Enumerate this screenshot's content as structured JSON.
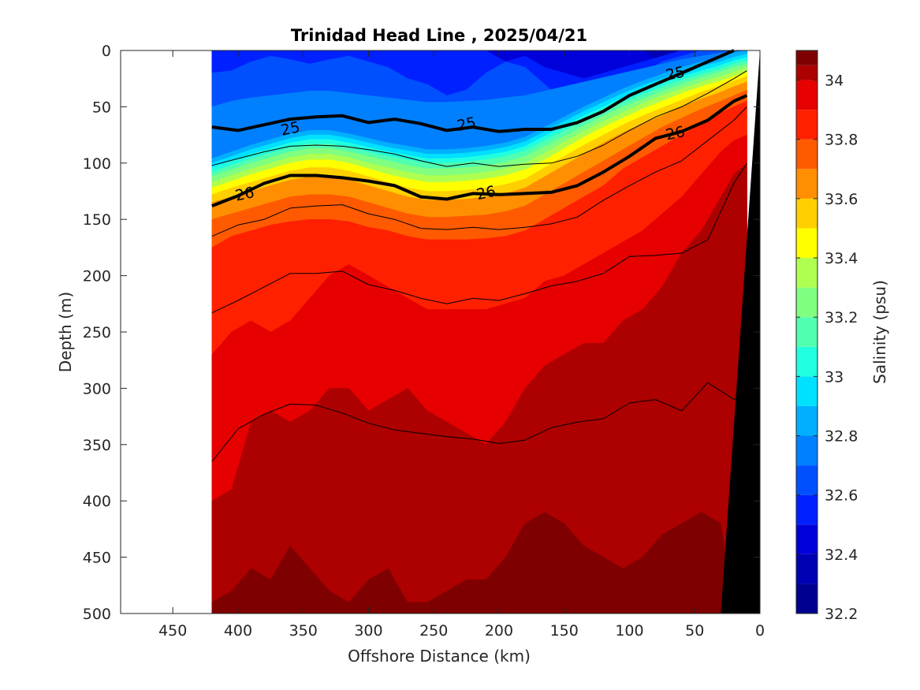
{
  "chart_data": {
    "type": "contour",
    "title": "Trinidad Head Line , 2025/04/21",
    "xlabel": "Offshore Distance (km)",
    "ylabel": "Depth (m)",
    "xlim": [
      490,
      0
    ],
    "ylim": [
      0,
      500
    ],
    "x_reversed": true,
    "y_reversed": true,
    "xticks": [
      450,
      400,
      350,
      300,
      250,
      200,
      150,
      100,
      50,
      0
    ],
    "yticks": [
      0,
      50,
      100,
      150,
      200,
      250,
      300,
      350,
      400,
      450,
      500
    ],
    "data_extent_km": [
      420,
      10
    ],
    "colorbar": {
      "label": "Salinity (psu)",
      "min": 32.2,
      "max": 34.1,
      "ticks": [
        32.2,
        32.4,
        32.6,
        32.8,
        33.0,
        33.2,
        33.4,
        33.6,
        33.8,
        34.0
      ],
      "tick_labels": [
        "32.2",
        "32.4",
        "32.6",
        "32.8",
        "33",
        "33.2",
        "33.4",
        "33.6",
        "33.8",
        "34"
      ],
      "levels": [
        {
          "from": 32.2,
          "to": 32.3,
          "color": "#00008f"
        },
        {
          "from": 32.3,
          "to": 32.4,
          "color": "#0000b4"
        },
        {
          "from": 32.4,
          "to": 32.5,
          "color": "#0000db"
        },
        {
          "from": 32.5,
          "to": 32.6,
          "color": "#0020ff"
        },
        {
          "from": 32.6,
          "to": 32.7,
          "color": "#0050ff"
        },
        {
          "from": 32.7,
          "to": 32.8,
          "color": "#0080ff"
        },
        {
          "from": 32.8,
          "to": 32.9,
          "color": "#00b0ff"
        },
        {
          "from": 32.9,
          "to": 33.0,
          "color": "#00e0ff"
        },
        {
          "from": 33.0,
          "to": 33.1,
          "color": "#20ffdf"
        },
        {
          "from": 33.1,
          "to": 33.2,
          "color": "#50ffaf"
        },
        {
          "from": 33.2,
          "to": 33.3,
          "color": "#80ff80"
        },
        {
          "from": 33.3,
          "to": 33.4,
          "color": "#afff50"
        },
        {
          "from": 33.4,
          "to": 33.5,
          "color": "#ffff00"
        },
        {
          "from": 33.5,
          "to": 33.6,
          "color": "#ffcf00"
        },
        {
          "from": 33.6,
          "to": 33.7,
          "color": "#ff8f00"
        },
        {
          "from": 33.7,
          "to": 33.8,
          "color": "#ff5a00"
        },
        {
          "from": 33.8,
          "to": 33.9,
          "color": "#ff2000"
        },
        {
          "from": 33.9,
          "to": 34.0,
          "color": "#e60000"
        },
        {
          "from": 34.0,
          "to": 34.05,
          "color": "#ad0000"
        },
        {
          "from": 34.05,
          "to": 34.1,
          "color": "#7f0000"
        }
      ]
    },
    "salinity_layers": [
      {
        "salinity": 34.08,
        "color": "#7f0000",
        "top_depth": [
          490,
          480,
          460,
          470,
          440,
          460,
          480,
          490,
          470,
          460,
          490,
          490,
          480,
          470,
          470,
          450,
          420,
          410,
          420,
          440,
          450,
          460,
          450,
          430,
          420,
          410,
          420,
          500,
          500
        ]
      },
      {
        "salinity": 34.02,
        "color": "#ad0000",
        "top_depth": [
          400,
          390,
          330,
          320,
          330,
          320,
          300,
          300,
          320,
          310,
          300,
          320,
          330,
          340,
          350,
          330,
          300,
          280,
          270,
          260,
          260,
          240,
          230,
          210,
          180,
          160,
          130,
          110,
          100
        ]
      },
      {
        "salinity": 33.95,
        "color": "#e60000",
        "top_depth": [
          270,
          250,
          240,
          250,
          240,
          220,
          200,
          190,
          200,
          210,
          220,
          230,
          230,
          230,
          230,
          225,
          220,
          205,
          200,
          190,
          180,
          170,
          160,
          145,
          130,
          110,
          90,
          80,
          75
        ]
      },
      {
        "salinity": 33.85,
        "color": "#ff2000",
        "top_depth": [
          175,
          165,
          160,
          155,
          152,
          150,
          150,
          152,
          157,
          160,
          165,
          168,
          168,
          168,
          167,
          165,
          160,
          150,
          140,
          130,
          120,
          105,
          95,
          85,
          75,
          65,
          55,
          50,
          45
        ]
      },
      {
        "salinity": 33.75,
        "color": "#ff5a00",
        "top_depth": [
          150,
          145,
          140,
          135,
          130,
          128,
          128,
          130,
          135,
          140,
          145,
          148,
          148,
          147,
          146,
          143,
          138,
          128,
          118,
          108,
          98,
          88,
          78,
          68,
          60,
          52,
          45,
          40,
          35
        ]
      },
      {
        "salinity": 33.65,
        "color": "#ff8f00",
        "top_depth": [
          135,
          130,
          125,
          120,
          115,
          112,
          113,
          115,
          120,
          125,
          130,
          133,
          133,
          132,
          130,
          127,
          122,
          112,
          102,
          92,
          82,
          73,
          65,
          58,
          50,
          43,
          37,
          32,
          28
        ]
      },
      {
        "salinity": 33.55,
        "color": "#ffcf00",
        "top_depth": [
          128,
          122,
          117,
          112,
          107,
          104,
          104,
          107,
          112,
          117,
          122,
          125,
          125,
          124,
          122,
          119,
          114,
          104,
          94,
          84,
          75,
          66,
          58,
          51,
          44,
          37,
          31,
          27,
          23
        ]
      },
      {
        "salinity": 33.45,
        "color": "#ffff00",
        "top_depth": [
          122,
          116,
          110,
          105,
          100,
          97,
          97,
          100,
          105,
          110,
          114,
          117,
          117,
          116,
          114,
          111,
          106,
          97,
          87,
          77,
          68,
          60,
          52,
          45,
          38,
          32,
          27,
          23,
          19
        ]
      },
      {
        "salinity": 33.35,
        "color": "#afff50",
        "top_depth": [
          117,
          111,
          105,
          100,
          95,
          92,
          92,
          95,
          100,
          104,
          108,
          111,
          111,
          110,
          108,
          105,
          100,
          91,
          81,
          72,
          63,
          55,
          47,
          40,
          34,
          28,
          23,
          19,
          15
        ]
      },
      {
        "salinity": 33.25,
        "color": "#80ff80",
        "top_depth": [
          112,
          106,
          100,
          95,
          90,
          87,
          87,
          90,
          94,
          98,
          102,
          105,
          105,
          104,
          102,
          99,
          94,
          85,
          76,
          67,
          58,
          50,
          43,
          36,
          30,
          24,
          19,
          15,
          12
        ]
      },
      {
        "salinity": 33.15,
        "color": "#50ffaf",
        "top_depth": [
          108,
          102,
          96,
          91,
          86,
          83,
          83,
          86,
          90,
          94,
          97,
          100,
          100,
          99,
          97,
          94,
          89,
          80,
          71,
          62,
          54,
          46,
          39,
          32,
          26,
          21,
          16,
          12,
          9
        ]
      },
      {
        "salinity": 33.05,
        "color": "#20ffdf",
        "top_depth": [
          104,
          98,
          92,
          87,
          82,
          79,
          79,
          82,
          86,
          90,
          93,
          96,
          96,
          95,
          93,
          90,
          85,
          76,
          67,
          58,
          50,
          42,
          35,
          29,
          23,
          18,
          13,
          9,
          6
        ]
      },
      {
        "salinity": 32.95,
        "color": "#00e0ff",
        "top_depth": [
          100,
          94,
          88,
          83,
          78,
          75,
          75,
          78,
          82,
          86,
          89,
          92,
          92,
          91,
          89,
          86,
          81,
          72,
          63,
          54,
          46,
          38,
          31,
          25,
          19,
          14,
          10,
          6,
          3
        ]
      },
      {
        "salinity": 32.85,
        "color": "#00b0ff",
        "top_depth": [
          96,
          90,
          84,
          79,
          74,
          71,
          71,
          74,
          78,
          82,
          85,
          88,
          88,
          87,
          85,
          82,
          77,
          68,
          59,
          50,
          42,
          34,
          27,
          21,
          15,
          10,
          6,
          2,
          0
        ]
      },
      {
        "salinity": 32.75,
        "color": "#0080ff",
        "top_depth": [
          50,
          45,
          42,
          40,
          38,
          36,
          36,
          38,
          40,
          42,
          44,
          46,
          46,
          45,
          44,
          42,
          40,
          36,
          32,
          28,
          24,
          20,
          16,
          12,
          8,
          5,
          2,
          0,
          0
        ]
      },
      {
        "salinity": 32.65,
        "color": "#0050ff",
        "top_depth": [
          20,
          18,
          10,
          5,
          8,
          12,
          8,
          5,
          10,
          15,
          25,
          30,
          40,
          35,
          20,
          10,
          15,
          30,
          45,
          48,
          40,
          30,
          20,
          10,
          5,
          0,
          0,
          0,
          0
        ]
      },
      {
        "salinity": 32.55,
        "color": "#0020ff",
        "top_depth": [
          0,
          0,
          0,
          0,
          0,
          0,
          0,
          0,
          0,
          0,
          0,
          0,
          0,
          0,
          0,
          10,
          5,
          15,
          20,
          25,
          20,
          15,
          10,
          5,
          0,
          0,
          0,
          0,
          0
        ]
      },
      {
        "salinity": 32.45,
        "color": "#0000db",
        "top_depth": [
          0,
          0,
          0,
          0,
          0,
          0,
          0,
          0,
          0,
          0,
          0,
          0,
          0,
          0,
          0,
          0,
          0,
          0,
          0,
          0,
          0,
          0,
          0,
          12,
          8,
          10,
          0,
          0,
          0
        ]
      },
      {
        "salinity": 32.35,
        "color": "#0000b4",
        "top_depth": [
          0,
          0,
          0,
          0,
          0,
          0,
          0,
          0,
          0,
          0,
          0,
          0,
          0,
          0,
          0,
          0,
          0,
          0,
          0,
          0,
          0,
          0,
          0,
          0,
          0,
          0,
          0,
          0,
          0
        ]
      }
    ],
    "layer_x_km": [
      420,
      405,
      390,
      375,
      360,
      345,
      330,
      315,
      300,
      285,
      270,
      255,
      240,
      225,
      210,
      195,
      180,
      165,
      150,
      135,
      120,
      105,
      90,
      75,
      60,
      45,
      30,
      20,
      10
    ],
    "density_contours": [
      {
        "sigma": "25",
        "bold": true,
        "x": [
          420,
          400,
          380,
          360,
          340,
          320,
          300,
          280,
          260,
          240,
          220,
          200,
          180,
          160,
          140,
          120,
          100,
          80,
          60,
          40,
          20
        ],
        "depth": [
          68,
          71,
          66,
          61,
          59,
          58,
          64,
          61,
          65,
          71,
          68,
          72,
          70,
          70,
          64,
          54,
          40,
          30,
          20,
          10,
          0
        ]
      },
      {
        "sigma": "26",
        "bold": true,
        "x": [
          420,
          400,
          380,
          360,
          340,
          320,
          300,
          280,
          260,
          240,
          220,
          200,
          180,
          160,
          140,
          120,
          100,
          80,
          60,
          40,
          20,
          10
        ],
        "depth": [
          138,
          129,
          118,
          111,
          111,
          113,
          116,
          120,
          130,
          132,
          127,
          128,
          127,
          126,
          120,
          108,
          94,
          78,
          72,
          62,
          45,
          40
        ]
      },
      {
        "sigma": "25.5",
        "bold": false,
        "x": [
          420,
          400,
          380,
          360,
          340,
          320,
          300,
          280,
          260,
          240,
          220,
          200,
          180,
          160,
          140,
          120,
          100,
          80,
          60,
          40,
          20,
          10
        ],
        "depth": [
          102,
          96,
          90,
          85,
          84,
          85,
          88,
          92,
          98,
          103,
          100,
          103,
          101,
          100,
          94,
          84,
          71,
          59,
          50,
          38,
          25,
          18
        ]
      },
      {
        "sigma": "26.3",
        "bold": false,
        "x": [
          420,
          400,
          380,
          360,
          340,
          320,
          300,
          280,
          260,
          240,
          220,
          200,
          180,
          160,
          140,
          120,
          100,
          80,
          60,
          40,
          20,
          10
        ],
        "depth": [
          165,
          155,
          150,
          140,
          138,
          137,
          145,
          150,
          158,
          159,
          157,
          159,
          157,
          154,
          148,
          133,
          120,
          108,
          98,
          80,
          62,
          50
        ]
      },
      {
        "sigma": "26.5",
        "bold": false,
        "x": [
          420,
          400,
          380,
          360,
          340,
          320,
          300,
          280,
          260,
          240,
          220,
          200,
          180,
          160,
          140,
          120,
          100,
          80,
          60,
          40,
          20,
          10
        ],
        "depth": [
          233,
          222,
          210,
          198,
          198,
          196,
          208,
          213,
          220,
          225,
          220,
          222,
          216,
          209,
          205,
          198,
          183,
          182,
          180,
          168,
          118,
          100
        ]
      },
      {
        "sigma": "26.7",
        "bold": false,
        "x": [
          420,
          400,
          380,
          360,
          340,
          320,
          300,
          280,
          260,
          240,
          220,
          200,
          180,
          160,
          140,
          120,
          100,
          80,
          60,
          40,
          20,
          10
        ],
        "depth": [
          365,
          336,
          323,
          314,
          315,
          322,
          331,
          337,
          340,
          343,
          345,
          349,
          346,
          335,
          330,
          327,
          313,
          310,
          320,
          295,
          310,
          300
        ]
      }
    ],
    "contour_labels": [
      {
        "text": "25",
        "x": 360,
        "depth": 69
      },
      {
        "text": "25",
        "x": 225,
        "depth": 65
      },
      {
        "text": "25",
        "x": 65,
        "depth": 20
      },
      {
        "text": "26",
        "x": 395,
        "depth": 127
      },
      {
        "text": "26",
        "x": 210,
        "depth": 126
      },
      {
        "text": "26",
        "x": 65,
        "depth": 73
      }
    ],
    "bathymetry": {
      "color": "#000000",
      "x": [
        0,
        0,
        10,
        30
      ],
      "depth": [
        0,
        500,
        500,
        500
      ],
      "slope_x": [
        0,
        30,
        0
      ],
      "slope_depth": [
        0,
        500,
        500
      ]
    }
  }
}
